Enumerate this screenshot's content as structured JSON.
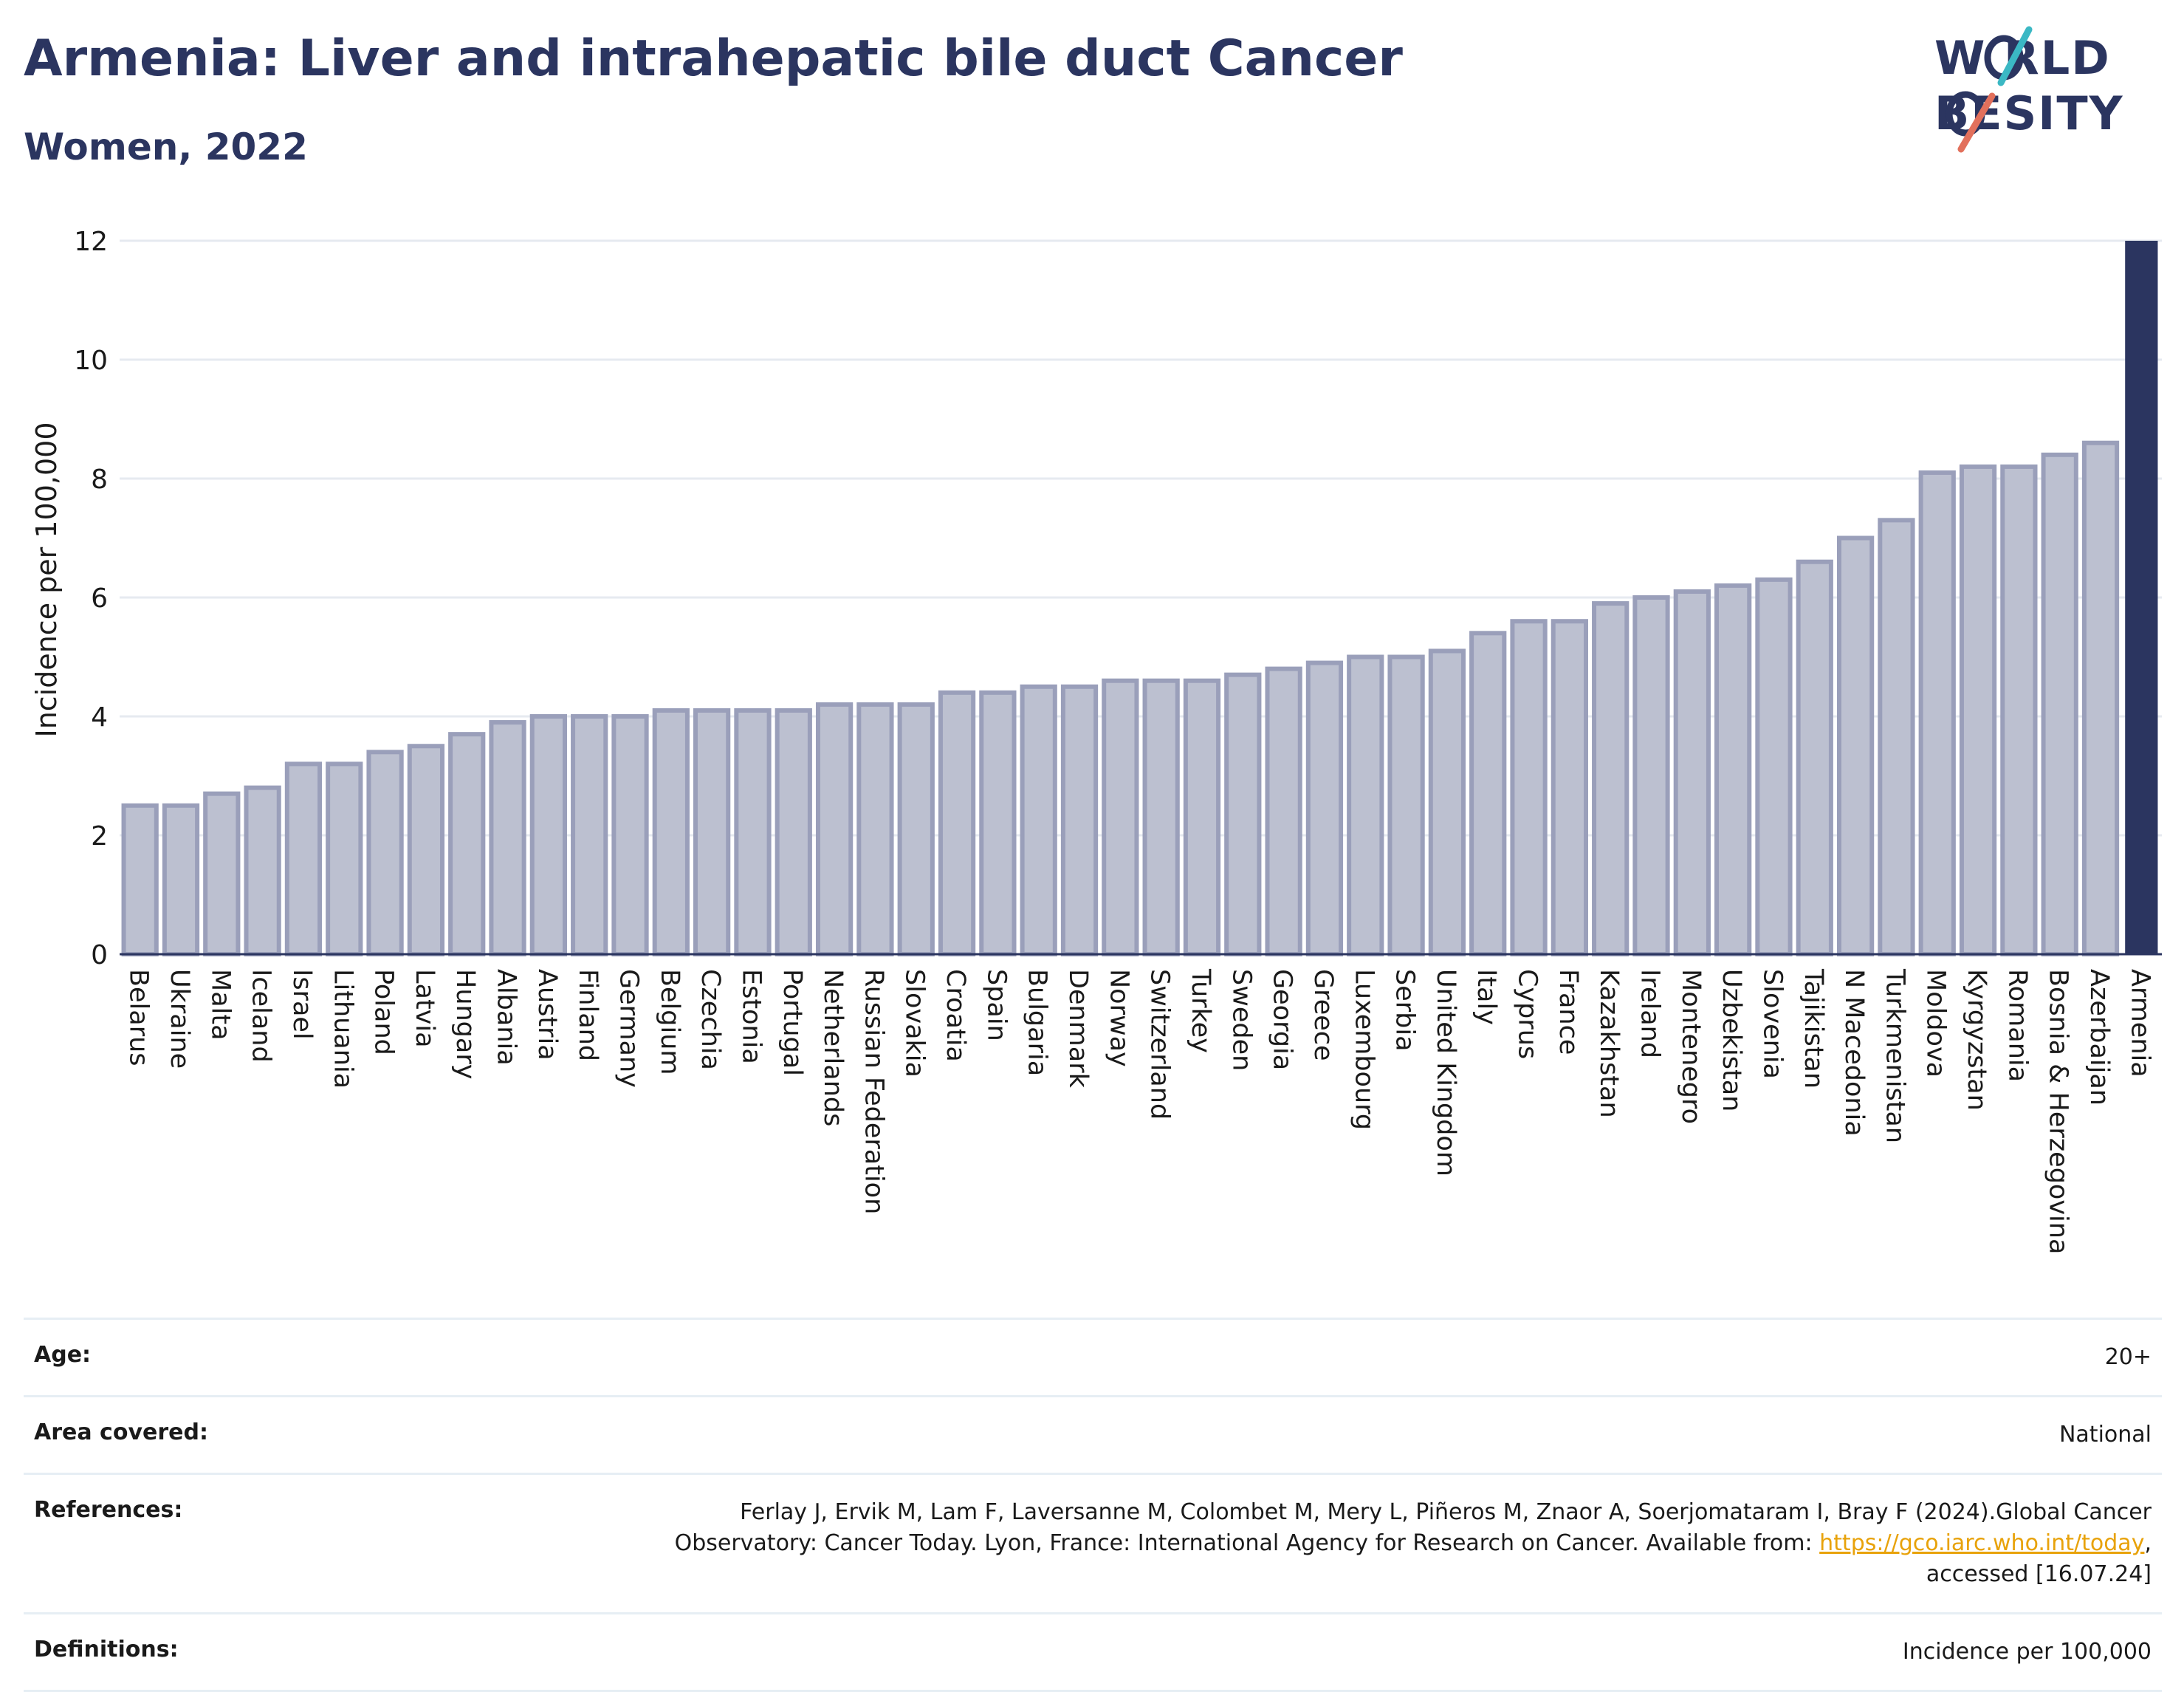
{
  "header": {
    "title": "Armenia: Liver and intrahepatic bile duct Cancer",
    "subtitle": "Women, 2022"
  },
  "logo": {
    "line1": "WORLD",
    "line2": "OBESITY"
  },
  "chart_data": {
    "type": "bar",
    "title": "Armenia: Liver and intrahepatic bile duct Cancer",
    "subtitle": "Women, 2022",
    "ylabel": "Incidence per 100,000",
    "xlabel": "",
    "ylim": [
      0,
      12
    ],
    "yticks": [
      0,
      2,
      4,
      6,
      8,
      10,
      12
    ],
    "grid": true,
    "highlight": "Armenia",
    "colors": {
      "bar": "#bcc0d0",
      "bar_edge": "#9a9fba",
      "highlight": "#2b3560"
    },
    "categories": [
      "Belarus",
      "Ukraine",
      "Malta",
      "Iceland",
      "Israel",
      "Lithuania",
      "Poland",
      "Latvia",
      "Hungary",
      "Albania",
      "Austria",
      "Finland",
      "Germany",
      "Belgium",
      "Czechia",
      "Estonia",
      "Portugal",
      "Netherlands",
      "Russian Federation",
      "Slovakia",
      "Croatia",
      "Spain",
      "Bulgaria",
      "Denmark",
      "Norway",
      "Switzerland",
      "Turkey",
      "Sweden",
      "Georgia",
      "Greece",
      "Luxembourg",
      "Serbia",
      "United Kingdom",
      "Italy",
      "Cyprus",
      "France",
      "Kazakhstan",
      "Ireland",
      "Montenegro",
      "Uzbekistan",
      "Slovenia",
      "Tajikistan",
      "N Macedonia",
      "Turkmenistan",
      "Moldova",
      "Kyrgyzstan",
      "Romania",
      "Bosnia & Herzegovina",
      "Azerbaijan",
      "Armenia"
    ],
    "values": [
      2.5,
      2.5,
      2.7,
      2.8,
      3.2,
      3.2,
      3.4,
      3.5,
      3.7,
      3.9,
      4.0,
      4.0,
      4.0,
      4.1,
      4.1,
      4.1,
      4.1,
      4.2,
      4.2,
      4.2,
      4.4,
      4.4,
      4.5,
      4.5,
      4.6,
      4.6,
      4.6,
      4.7,
      4.8,
      4.9,
      5.0,
      5.0,
      5.1,
      5.4,
      5.6,
      5.6,
      5.9,
      6.0,
      6.1,
      6.2,
      6.3,
      6.6,
      7.0,
      7.3,
      8.1,
      8.2,
      8.2,
      8.4,
      8.6,
      12.0
    ]
  },
  "info": {
    "age": {
      "label": "Age:",
      "value": "20+"
    },
    "area": {
      "label": "Area covered:",
      "value": "National"
    },
    "references": {
      "label": "References:",
      "line1": "Ferlay J, Ervik M, Lam F, Laversanne M, Colombet M, Mery L, Piñeros M, Znaor A, Soerjomataram I, Bray F (2024).Global Cancer",
      "line2_prefix": "Observatory: Cancer Today. Lyon, France: International Agency for Research on Cancer. Available from: ",
      "link": "https://gco.iarc.who.int/today",
      "line2_suffix": ",",
      "line3": "accessed [16.07.24]"
    },
    "definitions": {
      "label": "Definitions:",
      "value": "Incidence per 100,000"
    }
  }
}
